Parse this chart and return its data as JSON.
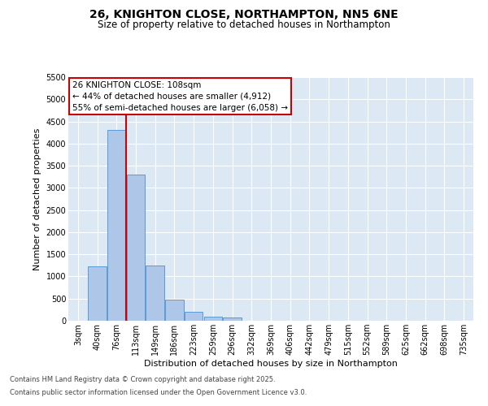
{
  "title_line1": "26, KNIGHTON CLOSE, NORTHAMPTON, NN5 6NE",
  "title_line2": "Size of property relative to detached houses in Northampton",
  "xlabel": "Distribution of detached houses by size in Northampton",
  "ylabel": "Number of detached properties",
  "categories": [
    "3sqm",
    "40sqm",
    "76sqm",
    "113sqm",
    "149sqm",
    "186sqm",
    "223sqm",
    "259sqm",
    "296sqm",
    "332sqm",
    "369sqm",
    "406sqm",
    "442sqm",
    "479sqm",
    "515sqm",
    "552sqm",
    "589sqm",
    "625sqm",
    "662sqm",
    "698sqm",
    "735sqm"
  ],
  "values": [
    0,
    1220,
    4300,
    3300,
    1250,
    480,
    200,
    100,
    80,
    0,
    0,
    0,
    0,
    0,
    0,
    0,
    0,
    0,
    0,
    0,
    0
  ],
  "bar_color": "#aec6e8",
  "bar_edge_color": "#5b9bd5",
  "vline_color": "#cc0000",
  "annotation_title": "26 KNIGHTON CLOSE: 108sqm",
  "annotation_line1": "← 44% of detached houses are smaller (4,912)",
  "annotation_line2": "55% of semi-detached houses are larger (6,058) →",
  "annotation_box_color": "#cc0000",
  "ylim": [
    0,
    5500
  ],
  "yticks": [
    0,
    500,
    1000,
    1500,
    2000,
    2500,
    3000,
    3500,
    4000,
    4500,
    5000,
    5500
  ],
  "footnote1": "Contains HM Land Registry data © Crown copyright and database right 2025.",
  "footnote2": "Contains public sector information licensed under the Open Government Licence v3.0.",
  "bg_color": "#dce9f5",
  "fig_bg_color": "#ffffff",
  "title_fontsize": 10,
  "subtitle_fontsize": 8.5,
  "tick_fontsize": 7,
  "label_fontsize": 8,
  "annotation_fontsize": 7.5,
  "footnote_fontsize": 6
}
